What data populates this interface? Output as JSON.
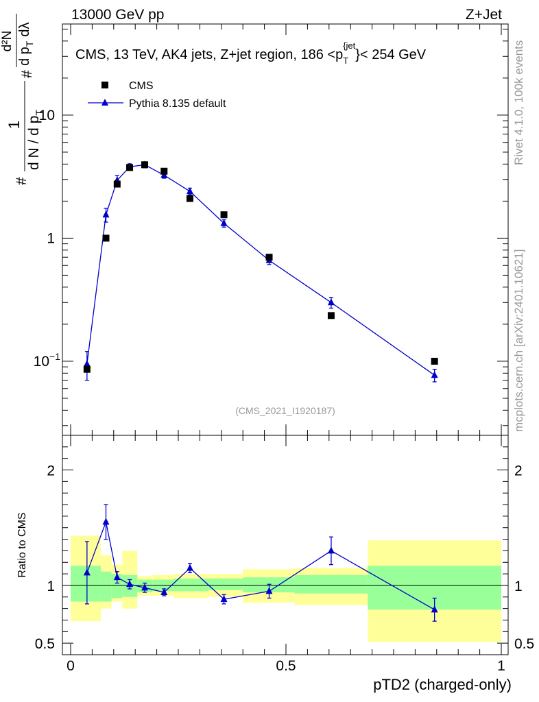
{
  "header": {
    "energy_label": "13000 GeV pp",
    "process_label": "Z+Jet"
  },
  "side_labels": {
    "rivet": "Rivet 4.1.0,  100k events",
    "site": "mcplots.cern.ch [arXiv:2401.10621]"
  },
  "chart_data": [
    {
      "type": "scatter",
      "title": "CMS, 13 TeV, AK4 jets, Z+jet region, 186 <p_T^{jet}< 254 GeV",
      "title_main": "CMS, 13 TeV, AK4 jets, Z+jet region, 186 <p",
      "title_sup": "{jet",
      "title_sub": "T",
      "title_end": "}< 254 GeV",
      "ylabel": "1/(dN/dpT) d²N/(dpT dλ)",
      "ylabel_parts": {
        "one": "1",
        "denominator": "d N / d p",
        "numerator": "d²N",
        "num2": "d p",
        "dlambda": "dλ",
        "sub": "T",
        "hash": "#"
      },
      "yscale": "log",
      "xlim": [
        0,
        1
      ],
      "ylim": [
        0.025,
        55
      ],
      "y_ticks": [
        {
          "value": 0.1,
          "label": "10",
          "sup": "−1"
        },
        {
          "value": 1,
          "label": "1"
        },
        {
          "value": 10,
          "label": "10"
        }
      ],
      "watermark": "(CMS_2021_I1920187)",
      "legend": {
        "position": "top-left",
        "entries": [
          "CMS",
          "Pythia 8.135 default"
        ]
      },
      "series": [
        {
          "name": "CMS",
          "marker": "square",
          "color": "#000000",
          "x": [
            0.038,
            0.082,
            0.108,
            0.137,
            0.172,
            0.217,
            0.277,
            0.356,
            0.461,
            0.605,
            0.845
          ],
          "values": [
            0.086,
            1.0,
            2.75,
            3.75,
            3.95,
            3.5,
            2.1,
            1.55,
            0.7,
            0.235,
            0.1
          ]
        },
        {
          "name": "Pythia 8.135 default",
          "marker": "triangle",
          "color": "#0000cc",
          "x": [
            0.038,
            0.082,
            0.108,
            0.137,
            0.172,
            0.217,
            0.277,
            0.356,
            0.461,
            0.605,
            0.845
          ],
          "values": [
            0.095,
            1.55,
            2.95,
            3.8,
            3.95,
            3.25,
            2.4,
            1.32,
            0.66,
            0.3,
            0.077
          ],
          "err": [
            0.025,
            0.2,
            0.28,
            0.22,
            0.22,
            0.18,
            0.15,
            0.09,
            0.05,
            0.03,
            0.009
          ]
        }
      ]
    },
    {
      "type": "scatter",
      "ylabel": "Ratio to CMS",
      "xlabel": "pTD2 (charged-only)",
      "xlim": [
        0,
        1
      ],
      "ylim": [
        0.4,
        2.3
      ],
      "x_ticks": [
        {
          "value": 0,
          "label": "0"
        },
        {
          "value": 0.5,
          "label": "0.5"
        },
        {
          "value": 1,
          "label": "1"
        }
      ],
      "y_ticks": [
        {
          "value": 0.5,
          "label": "0.5"
        },
        {
          "value": 1,
          "label": "1"
        },
        {
          "value": 2,
          "label": "2"
        }
      ],
      "uncertainty_bands": [
        {
          "x0": 0.0,
          "x1": 0.07,
          "inner": [
            0.86,
            1.17
          ],
          "outer": [
            0.69,
            1.43
          ]
        },
        {
          "x0": 0.07,
          "x1": 0.095,
          "inner": [
            0.86,
            1.12
          ],
          "outer": [
            0.8,
            1.26
          ]
        },
        {
          "x0": 0.095,
          "x1": 0.12,
          "inner": [
            0.89,
            1.1
          ],
          "outer": [
            0.86,
            1.18
          ]
        },
        {
          "x0": 0.12,
          "x1": 0.155,
          "inner": [
            0.9,
            1.09
          ],
          "outer": [
            0.8,
            1.3
          ]
        },
        {
          "x0": 0.155,
          "x1": 0.19,
          "inner": [
            0.94,
            1.05
          ],
          "outer": [
            0.91,
            1.08
          ]
        },
        {
          "x0": 0.19,
          "x1": 0.24,
          "inner": [
            0.95,
            1.05
          ],
          "outer": [
            0.91,
            1.09
          ]
        },
        {
          "x0": 0.24,
          "x1": 0.32,
          "inner": [
            0.95,
            1.06
          ],
          "outer": [
            0.89,
            1.1
          ]
        },
        {
          "x0": 0.32,
          "x1": 0.4,
          "inner": [
            0.96,
            1.06
          ],
          "outer": [
            0.9,
            1.1
          ]
        },
        {
          "x0": 0.4,
          "x1": 0.52,
          "inner": [
            0.94,
            1.07
          ],
          "outer": [
            0.85,
            1.14
          ]
        },
        {
          "x0": 0.52,
          "x1": 0.69,
          "inner": [
            0.93,
            1.09
          ],
          "outer": [
            0.83,
            1.15
          ]
        },
        {
          "x0": 0.69,
          "x1": 1.0,
          "inner": [
            0.79,
            1.17
          ],
          "outer": [
            0.51,
            1.39
          ]
        }
      ],
      "band_colors": {
        "inner": "#99ff99",
        "outer": "#ffff99"
      },
      "reference_line": 1,
      "series": [
        {
          "name": "Pythia 8.135 default / CMS",
          "marker": "triangle",
          "color": "#0000cc",
          "x": [
            0.038,
            0.082,
            0.108,
            0.137,
            0.172,
            0.217,
            0.277,
            0.356,
            0.461,
            0.605,
            0.845
          ],
          "values": [
            1.11,
            1.55,
            1.07,
            1.01,
            0.98,
            0.94,
            1.15,
            0.88,
            0.95,
            1.3,
            0.79
          ],
          "err": [
            0.27,
            0.15,
            0.05,
            0.04,
            0.04,
            0.03,
            0.04,
            0.04,
            0.06,
            0.12,
            0.1
          ]
        }
      ]
    }
  ]
}
